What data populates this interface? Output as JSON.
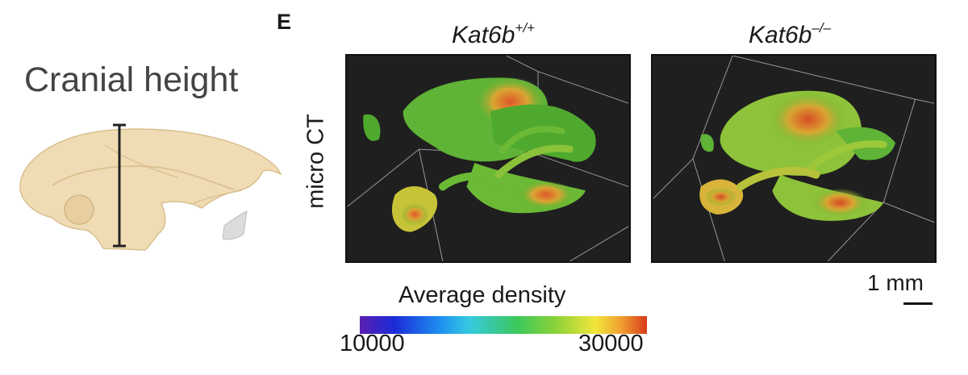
{
  "left_panel": {
    "title": "Cranial height"
  },
  "panel_e": {
    "letter": "E",
    "genotypes": [
      {
        "name": "Kat6b",
        "superscript": "+/+"
      },
      {
        "name": "Kat6b",
        "superscript": "–/–"
      }
    ],
    "row_label": "micro CT",
    "scale_bar_label": "1 mm",
    "colorbar": {
      "title": "Average density",
      "min_label": "10000",
      "max_label": "30000"
    }
  }
}
